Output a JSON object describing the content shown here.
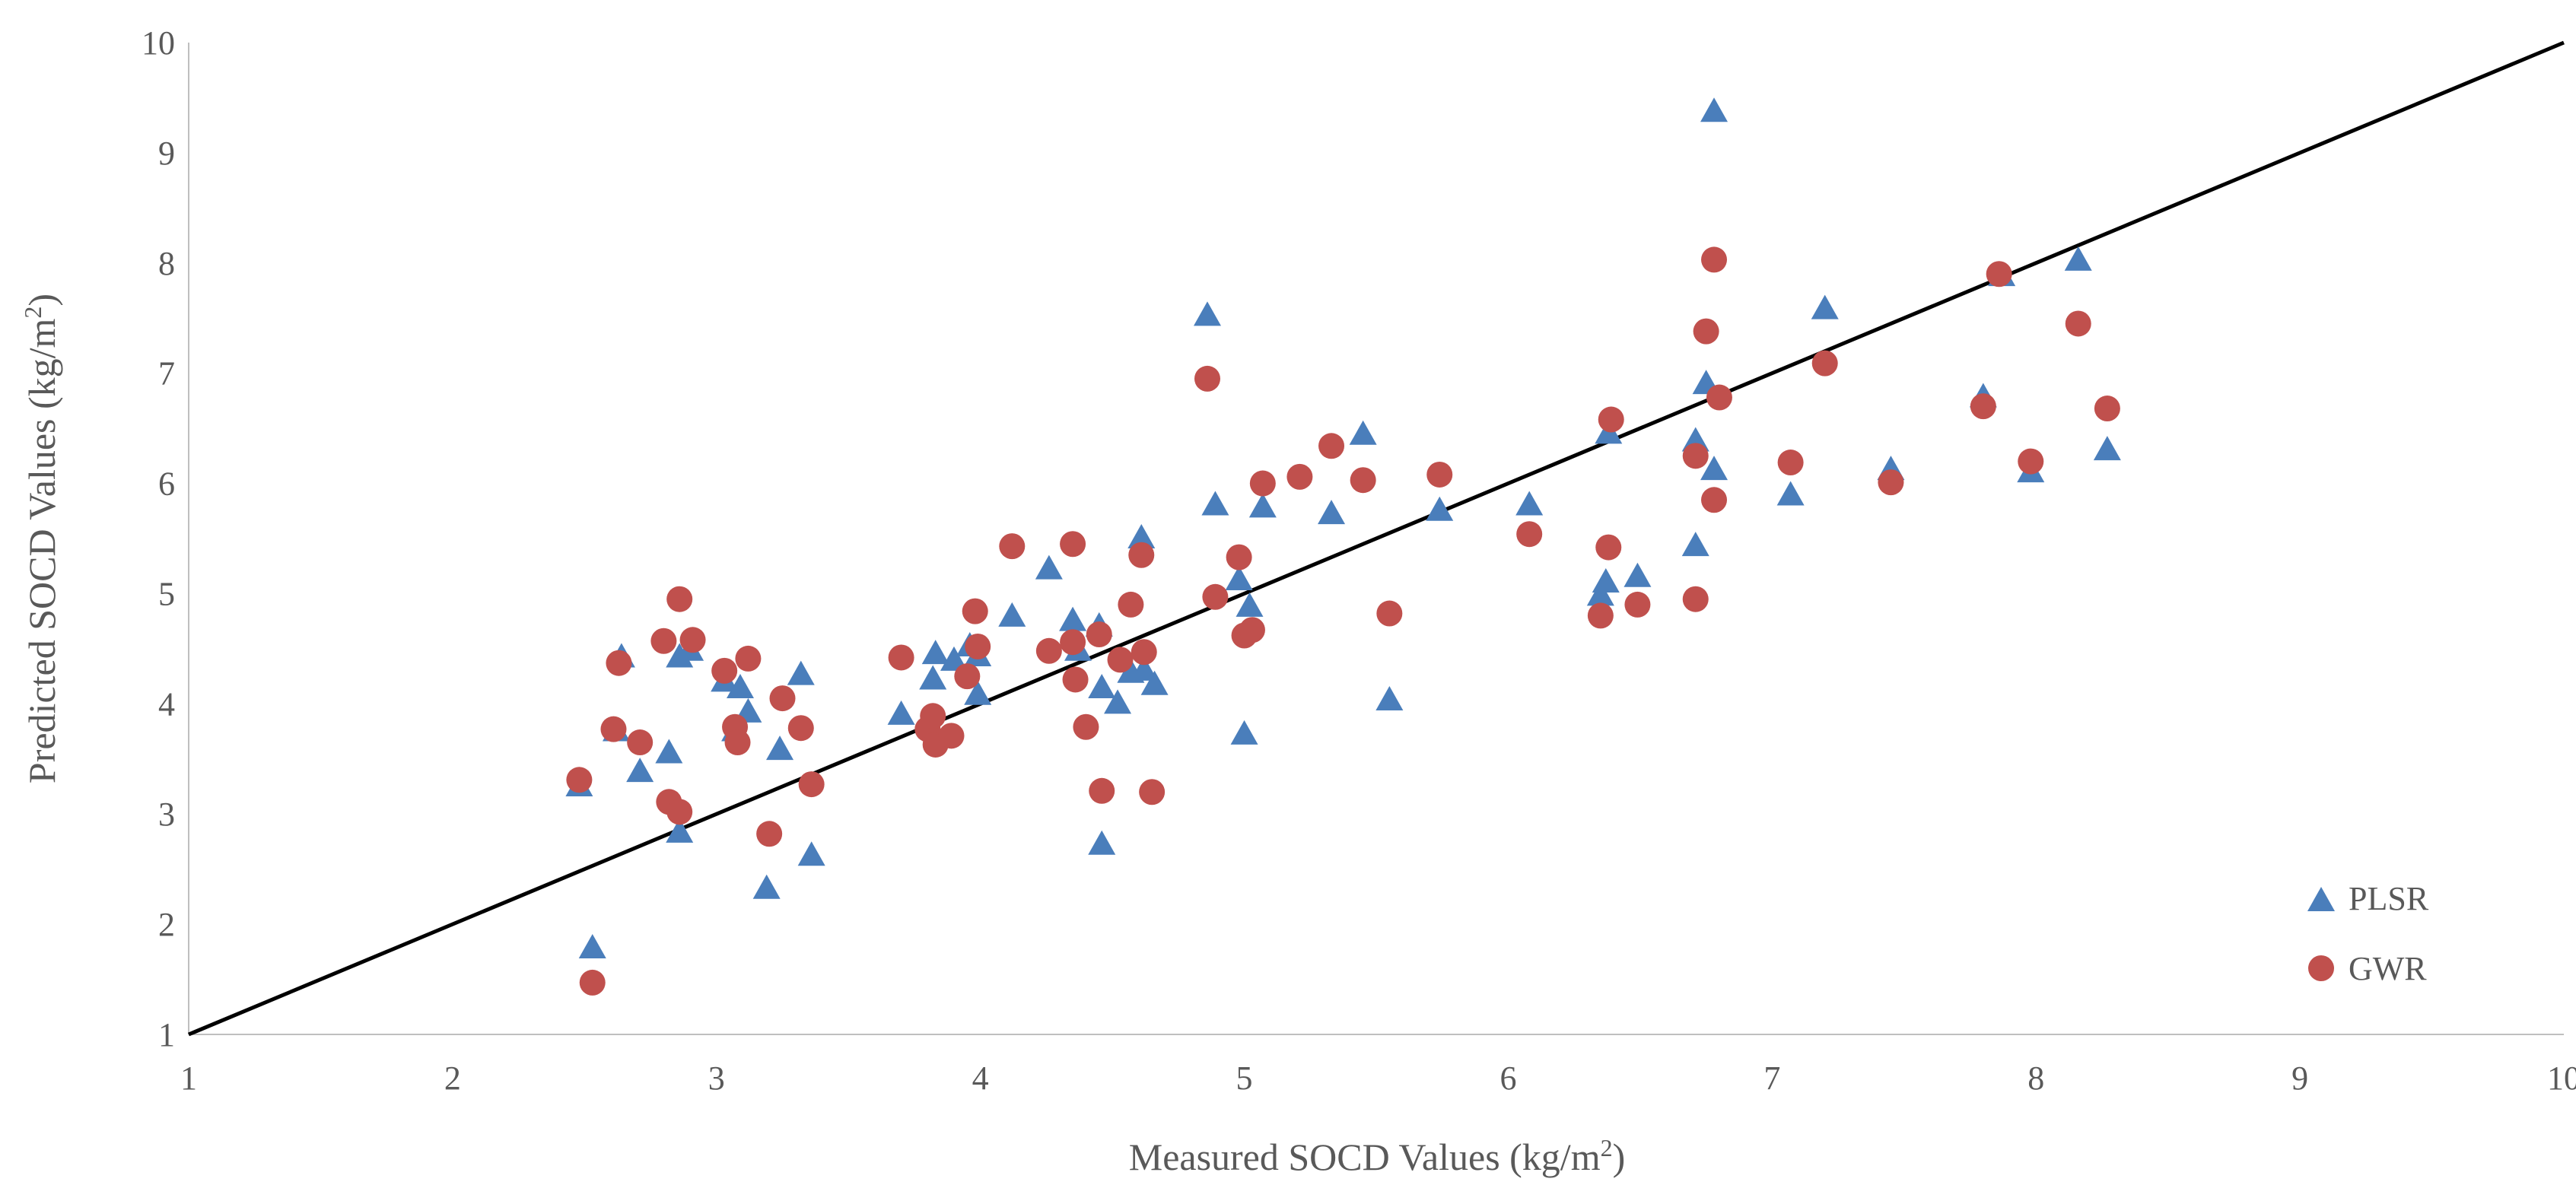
{
  "chart_data": {
    "type": "scatter",
    "xlabel": "Measured SOCD Values (kg/m",
    "xlabel_sup": "2",
    "xlabel_end": ")",
    "ylabel": "Predicted SOCD Values (kg/m",
    "ylabel_sup": "2",
    "ylabel_end": ")",
    "xlim": [
      1,
      10
    ],
    "ylim": [
      1,
      10
    ],
    "xticks": [
      "1",
      "2",
      "3",
      "4",
      "5",
      "6",
      "7",
      "8",
      "9",
      "10"
    ],
    "yticks": [
      "1",
      "2",
      "3",
      "4",
      "5",
      "6",
      "7",
      "8",
      "9",
      "10"
    ],
    "grid": false,
    "legend_position": "bottom-right",
    "reference_line": {
      "x": [
        1,
        10
      ],
      "y": [
        1,
        10
      ],
      "color": "#000000"
    },
    "series": [
      {
        "name": "PLSR",
        "marker": "triangle",
        "color": "#4A7EBB",
        "points": [
          [
            2.48,
            3.25
          ],
          [
            2.53,
            1.78
          ],
          [
            2.62,
            3.75
          ],
          [
            2.64,
            4.42
          ],
          [
            2.71,
            3.38
          ],
          [
            2.82,
            3.55
          ],
          [
            2.86,
            2.83
          ],
          [
            2.86,
            4.42
          ],
          [
            2.9,
            4.48
          ],
          [
            3.03,
            4.2
          ],
          [
            3.07,
            3.75
          ],
          [
            3.09,
            4.14
          ],
          [
            3.12,
            3.92
          ],
          [
            3.19,
            2.32
          ],
          [
            3.24,
            3.58
          ],
          [
            3.32,
            4.26
          ],
          [
            3.36,
            2.62
          ],
          [
            3.7,
            3.9
          ],
          [
            3.82,
            4.22
          ],
          [
            3.83,
            4.45
          ],
          [
            3.9,
            4.39
          ],
          [
            3.96,
            4.52
          ],
          [
            3.99,
            4.08
          ],
          [
            3.99,
            4.43
          ],
          [
            4.12,
            4.79
          ],
          [
            4.26,
            5.22
          ],
          [
            4.35,
            4.75
          ],
          [
            4.37,
            4.48
          ],
          [
            4.45,
            4.7
          ],
          [
            4.46,
            4.14
          ],
          [
            4.46,
            2.72
          ],
          [
            4.52,
            4.0
          ],
          [
            4.57,
            4.28
          ],
          [
            4.61,
            5.5
          ],
          [
            4.62,
            4.3
          ],
          [
            4.66,
            4.17
          ],
          [
            4.86,
            7.52
          ],
          [
            4.89,
            5.8
          ],
          [
            4.98,
            5.12
          ],
          [
            5.0,
            3.72
          ],
          [
            5.02,
            4.88
          ],
          [
            5.07,
            5.78
          ],
          [
            5.33,
            5.72
          ],
          [
            5.45,
            6.44
          ],
          [
            5.55,
            4.03
          ],
          [
            5.74,
            5.75
          ],
          [
            6.08,
            5.8
          ],
          [
            6.35,
            4.98
          ],
          [
            6.37,
            5.1
          ],
          [
            6.38,
            6.45
          ],
          [
            6.49,
            5.15
          ],
          [
            6.71,
            5.43
          ],
          [
            6.71,
            6.38
          ],
          [
            6.75,
            6.9
          ],
          [
            6.78,
            6.12
          ],
          [
            6.78,
            9.37
          ],
          [
            7.07,
            5.89
          ],
          [
            7.2,
            7.58
          ],
          [
            7.45,
            6.12
          ],
          [
            7.8,
            6.78
          ],
          [
            7.87,
            7.88
          ],
          [
            7.98,
            6.1
          ],
          [
            8.16,
            8.02
          ],
          [
            8.27,
            6.3
          ]
        ]
      },
      {
        "name": "GWR",
        "marker": "circle",
        "color": "#C0504D",
        "points": [
          [
            2.48,
            3.31
          ],
          [
            2.53,
            1.47
          ],
          [
            2.61,
            3.77
          ],
          [
            2.63,
            4.37
          ],
          [
            2.71,
            3.65
          ],
          [
            2.8,
            4.57
          ],
          [
            2.82,
            3.11
          ],
          [
            2.86,
            3.02
          ],
          [
            2.86,
            4.95
          ],
          [
            2.91,
            4.58
          ],
          [
            3.03,
            4.3
          ],
          [
            3.07,
            3.79
          ],
          [
            3.08,
            3.65
          ],
          [
            3.12,
            4.41
          ],
          [
            3.2,
            2.82
          ],
          [
            3.25,
            4.05
          ],
          [
            3.32,
            3.78
          ],
          [
            3.36,
            3.27
          ],
          [
            3.7,
            4.42
          ],
          [
            3.8,
            3.77
          ],
          [
            3.82,
            3.89
          ],
          [
            3.83,
            3.63
          ],
          [
            3.89,
            3.71
          ],
          [
            3.95,
            4.25
          ],
          [
            3.98,
            4.84
          ],
          [
            3.99,
            4.52
          ],
          [
            4.12,
            5.43
          ],
          [
            4.26,
            4.48
          ],
          [
            4.35,
            5.45
          ],
          [
            4.35,
            4.56
          ],
          [
            4.36,
            4.22
          ],
          [
            4.4,
            3.79
          ],
          [
            4.45,
            4.63
          ],
          [
            4.46,
            3.21
          ],
          [
            4.53,
            4.4
          ],
          [
            4.57,
            4.9
          ],
          [
            4.61,
            5.35
          ],
          [
            4.62,
            4.47
          ],
          [
            4.65,
            3.2
          ],
          [
            4.86,
            6.95
          ],
          [
            4.89,
            4.97
          ],
          [
            4.98,
            5.33
          ],
          [
            5.0,
            4.62
          ],
          [
            5.03,
            4.67
          ],
          [
            5.07,
            6.0
          ],
          [
            5.21,
            6.06
          ],
          [
            5.33,
            6.34
          ],
          [
            5.45,
            6.03
          ],
          [
            5.55,
            4.82
          ],
          [
            5.74,
            6.08
          ],
          [
            6.08,
            5.54
          ],
          [
            6.35,
            4.8
          ],
          [
            6.38,
            5.42
          ],
          [
            6.39,
            6.58
          ],
          [
            6.49,
            4.9
          ],
          [
            6.71,
            4.95
          ],
          [
            6.71,
            6.25
          ],
          [
            6.75,
            7.38
          ],
          [
            6.78,
            5.85
          ],
          [
            6.78,
            8.03
          ],
          [
            6.8,
            6.78
          ],
          [
            7.07,
            6.19
          ],
          [
            7.2,
            7.09
          ],
          [
            7.45,
            6.01
          ],
          [
            7.8,
            6.7
          ],
          [
            7.86,
            7.9
          ],
          [
            7.98,
            6.2
          ],
          [
            8.16,
            7.45
          ],
          [
            8.27,
            6.68
          ]
        ]
      }
    ]
  }
}
